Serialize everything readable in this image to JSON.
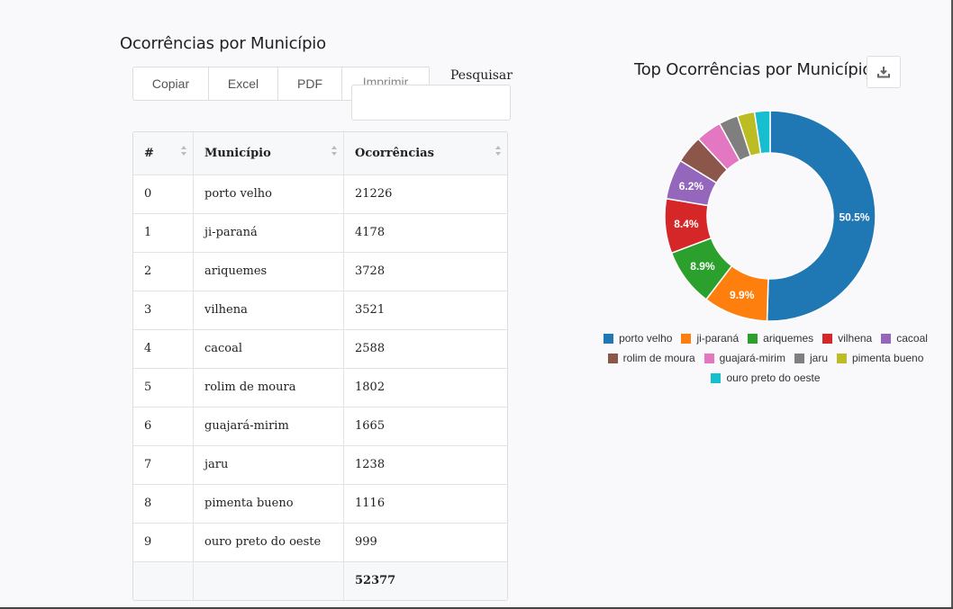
{
  "page": {
    "title": "Ocorrências por Município"
  },
  "toolbar": {
    "buttons": [
      "Copiar",
      "Excel",
      "PDF",
      "Imprimir"
    ]
  },
  "search": {
    "label": "Pesquisar",
    "value": ""
  },
  "table": {
    "headers": [
      "#",
      "Município",
      "Ocorrências"
    ],
    "rows": [
      [
        "0",
        "porto velho",
        "21226"
      ],
      [
        "1",
        "ji-paraná",
        "4178"
      ],
      [
        "2",
        "ariquemes",
        "3728"
      ],
      [
        "3",
        "vilhena",
        "3521"
      ],
      [
        "4",
        "cacoal",
        "2588"
      ],
      [
        "5",
        "rolim de moura",
        "1802"
      ],
      [
        "6",
        "guajará-mirim",
        "1665"
      ],
      [
        "7",
        "jaru",
        "1238"
      ],
      [
        "8",
        "pimenta bueno",
        "1116"
      ],
      [
        "9",
        "ouro preto do oeste",
        "999"
      ]
    ],
    "total": "52377"
  },
  "chart_data": {
    "type": "pie",
    "title": "Top Ocorrências por Município",
    "categories": [
      "porto velho",
      "ji-paraná",
      "ariquemes",
      "vilhena",
      "cacoal",
      "rolim de moura",
      "guajará-mirim",
      "jaru",
      "pimenta bueno",
      "ouro preto do oeste"
    ],
    "values": [
      21226,
      4178,
      3728,
      3521,
      2588,
      1802,
      1665,
      1238,
      1116,
      999
    ],
    "labels": [
      "50.5%",
      "9.9%",
      "8.9%",
      "8.4%",
      "6.2%",
      "",
      "",
      "",
      "",
      ""
    ],
    "colors": [
      "#1f77b4",
      "#ff7f0e",
      "#2ca02c",
      "#d62728",
      "#9467bd",
      "#8c564b",
      "#e377c2",
      "#7f7f7f",
      "#bcbd22",
      "#17becf"
    ],
    "legend": "bottom",
    "donut": true
  },
  "icons": {
    "download": "download-icon",
    "sort": "sort-icon"
  }
}
